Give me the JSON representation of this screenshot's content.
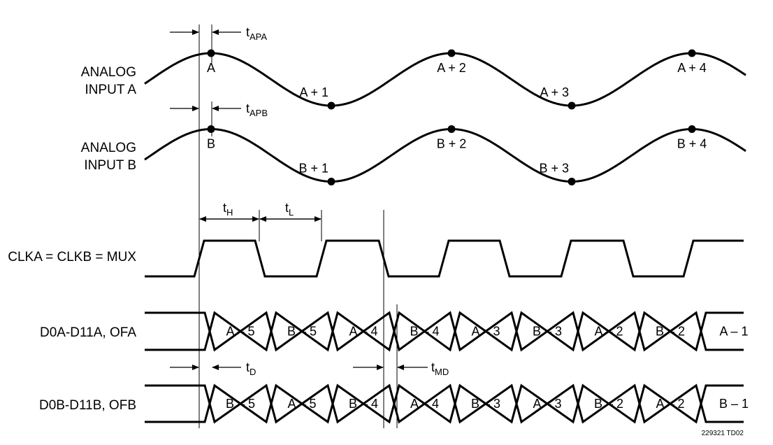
{
  "signals": {
    "analog_a_line1": "ANALOG",
    "analog_a_line2": "INPUT A",
    "analog_b_line1": "ANALOG",
    "analog_b_line2": "INPUT B",
    "clock": "CLKA = CLKB = MUX",
    "bus_a": "D0A-D11A, OFA",
    "bus_b": "D0B-D11B, OFB"
  },
  "samples_a": [
    "A",
    "A + 1",
    "A + 2",
    "A + 3",
    "A + 4"
  ],
  "samples_b": [
    "B",
    "B + 1",
    "B + 2",
    "B + 3",
    "B + 4"
  ],
  "bus_a_cells": [
    "A – 5",
    "B – 5",
    "A – 4",
    "B – 4",
    "A – 3",
    "B – 3",
    "A – 2",
    "B – 2",
    "A – 1"
  ],
  "bus_b_cells": [
    "B – 5",
    "A – 5",
    "B – 4",
    "A – 4",
    "B – 3",
    "A – 3",
    "B – 2",
    "A – 2",
    "B – 1"
  ],
  "timing": {
    "t_apa": {
      "main": "t",
      "sub": "APA"
    },
    "t_apb": {
      "main": "t",
      "sub": "APB"
    },
    "t_h": {
      "main": "t",
      "sub": "H"
    },
    "t_l": {
      "main": "t",
      "sub": "L"
    },
    "t_d": {
      "main": "t",
      "sub": "D"
    },
    "t_md": {
      "main": "t",
      "sub": "MD"
    }
  },
  "footer": "229321 TD02"
}
